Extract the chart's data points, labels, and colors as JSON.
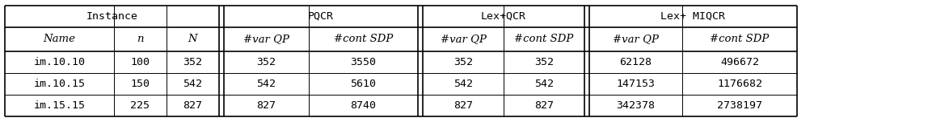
{
  "col_headers_row1": [
    "Instance",
    "PQCR",
    "Lex+QCR",
    "Lex+ MIQCR"
  ],
  "col_headers_row2": [
    "Name",
    "n",
    "N",
    "#var QP",
    "#cont SDP",
    "#var QP",
    "#cont SDP",
    "#var QP",
    "#cont SDP"
  ],
  "rows": [
    [
      "im.10.10",
      "100",
      "352",
      "352",
      "3550",
      "352",
      "352",
      "62128",
      "496672"
    ],
    [
      "im.10.15",
      "150",
      "542",
      "542",
      "5610",
      "542",
      "542",
      "147153",
      "1176682"
    ],
    [
      "im.15.15",
      "225",
      "827",
      "827",
      "8740",
      "827",
      "827",
      "342378",
      "2738197"
    ]
  ],
  "background_color": "#ffffff",
  "text_color": "#000000",
  "font_size": 9.5
}
